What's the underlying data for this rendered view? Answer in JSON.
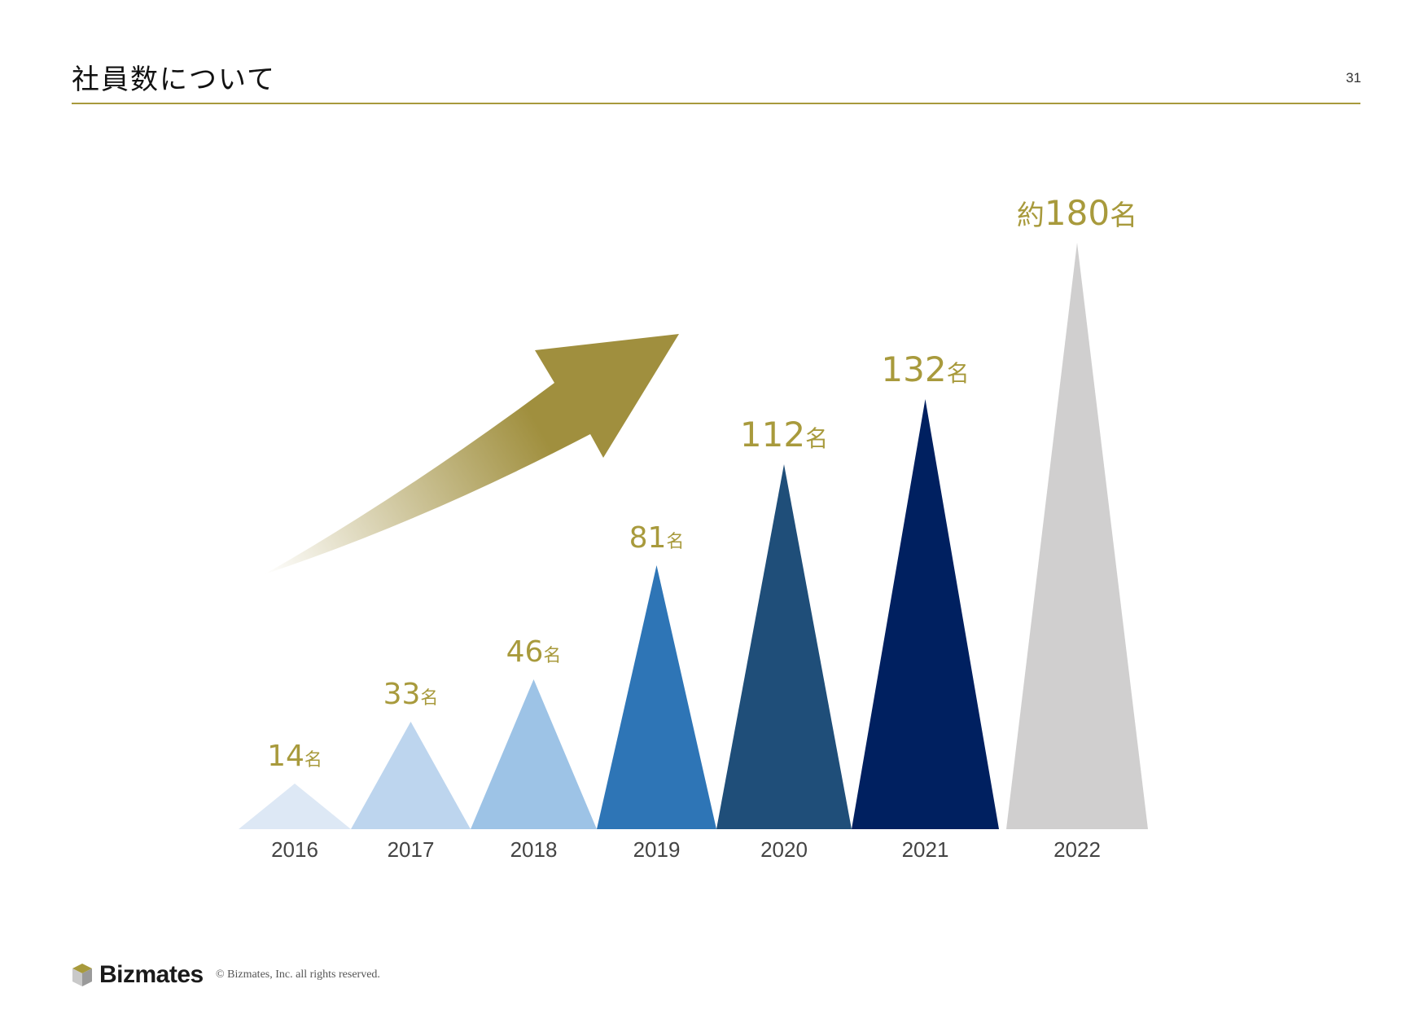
{
  "slide": {
    "title": "社員数について",
    "page_number": "31"
  },
  "footer": {
    "logo_text": "Bizmates",
    "copyright": "© Bizmates, Inc. all rights reserved."
  },
  "colors": {
    "accent": "#a89a3c",
    "label": "#a89a3c",
    "axis_text": "#444444",
    "arrow_start": "#ffffff",
    "arrow_end": "#a08f3e"
  },
  "chart_data": {
    "type": "bar",
    "bar_shape": "triangle",
    "categories": [
      "2016",
      "2017",
      "2018",
      "2019",
      "2020",
      "2021",
      "2022"
    ],
    "values": [
      14,
      33,
      46,
      81,
      112,
      132,
      180
    ],
    "value_labels": [
      {
        "prefix": "",
        "number": "14",
        "unit": "名"
      },
      {
        "prefix": "",
        "number": "33",
        "unit": "名"
      },
      {
        "prefix": "",
        "number": "46",
        "unit": "名"
      },
      {
        "prefix": "",
        "number": "81",
        "unit": "名"
      },
      {
        "prefix": "",
        "number": "112",
        "unit": "名"
      },
      {
        "prefix": "",
        "number": "132",
        "unit": "名"
      },
      {
        "prefix": "約",
        "number": "180",
        "unit": "名"
      }
    ],
    "bar_colors": [
      "#dde8f5",
      "#bdd5ee",
      "#9dc3e6",
      "#2e75b6",
      "#1f4e79",
      "#002060",
      "#d0cfcf"
    ],
    "title": "",
    "xlabel": "",
    "ylabel": "",
    "grid": false,
    "legend": "none",
    "decoration": "growth-arrow"
  }
}
